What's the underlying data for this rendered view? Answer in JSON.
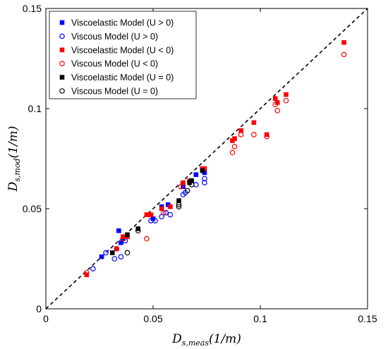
{
  "chart_data": {
    "type": "scatter",
    "xlabel": "D_{s,meas}(1/m)",
    "ylabel": "D_{s,mod}(1/m)",
    "xlabel_parts": {
      "main": "D",
      "sub": "s,meas",
      "unit": "(1/m)"
    },
    "ylabel_parts": {
      "main": "D",
      "sub": "s,mod",
      "unit": "(1/m)"
    },
    "xlim": [
      0,
      0.15
    ],
    "ylim": [
      0,
      0.15
    ],
    "x_ticks": [
      0,
      0.05,
      0.1,
      0.15
    ],
    "y_ticks": [
      0,
      0.05,
      0.1,
      0.15
    ],
    "x_tick_labels": [
      "0",
      "0.05",
      "0.1",
      "0.15"
    ],
    "y_tick_labels": [
      "0",
      "0.05",
      "0.1",
      "0.15"
    ],
    "grid": false,
    "legend_position": "top-left",
    "reference_line": {
      "style": "dashed",
      "color": "#000000",
      "from": [
        0,
        0
      ],
      "to": [
        0.15,
        0.15
      ]
    },
    "series": [
      {
        "name": "Viscoelastic Model (U > 0)",
        "marker": "square-filled",
        "color": "#0000ff",
        "points": [
          [
            0.026,
            0.026
          ],
          [
            0.034,
            0.039
          ],
          [
            0.035,
            0.033
          ],
          [
            0.036,
            0.035
          ],
          [
            0.05,
            0.045
          ],
          [
            0.054,
            0.051
          ],
          [
            0.057,
            0.052
          ],
          [
            0.058,
            0.051
          ],
          [
            0.064,
            0.061
          ],
          [
            0.07,
            0.067
          ],
          [
            0.074,
            0.068
          ],
          [
            0.073,
            0.07
          ]
        ]
      },
      {
        "name": "Viscous Model (U > 0)",
        "marker": "circle-open",
        "color": "#0000ff",
        "points": [
          [
            0.022,
            0.02
          ],
          [
            0.028,
            0.028
          ],
          [
            0.032,
            0.025
          ],
          [
            0.033,
            0.03
          ],
          [
            0.035,
            0.026
          ],
          [
            0.037,
            0.034
          ],
          [
            0.049,
            0.044
          ],
          [
            0.051,
            0.044
          ],
          [
            0.054,
            0.046
          ],
          [
            0.056,
            0.048
          ],
          [
            0.058,
            0.047
          ],
          [
            0.064,
            0.057
          ],
          [
            0.065,
            0.058
          ],
          [
            0.07,
            0.062
          ],
          [
            0.074,
            0.063
          ],
          [
            0.074,
            0.065
          ]
        ]
      },
      {
        "name": "Viscoelastic Model (U < 0)",
        "marker": "square-filled",
        "color": "#ff0000",
        "points": [
          [
            0.019,
            0.017
          ],
          [
            0.033,
            0.03
          ],
          [
            0.036,
            0.036
          ],
          [
            0.038,
            0.036
          ],
          [
            0.047,
            0.047
          ],
          [
            0.049,
            0.047
          ],
          [
            0.054,
            0.05
          ],
          [
            0.058,
            0.051
          ],
          [
            0.064,
            0.063
          ],
          [
            0.067,
            0.064
          ],
          [
            0.073,
            0.07
          ],
          [
            0.074,
            0.07
          ],
          [
            0.087,
            0.084
          ],
          [
            0.088,
            0.085
          ],
          [
            0.091,
            0.089
          ],
          [
            0.097,
            0.093
          ],
          [
            0.103,
            0.087
          ],
          [
            0.107,
            0.105
          ],
          [
            0.108,
            0.103
          ],
          [
            0.112,
            0.107
          ],
          [
            0.139,
            0.133
          ]
        ]
      },
      {
        "name": "Viscous Model (U < 0)",
        "marker": "circle-open",
        "color": "#ff0000",
        "points": [
          [
            0.019,
            0.018
          ],
          [
            0.036,
            0.035
          ],
          [
            0.047,
            0.035
          ],
          [
            0.048,
            0.047
          ],
          [
            0.055,
            0.048
          ],
          [
            0.063,
            0.061
          ],
          [
            0.087,
            0.078
          ],
          [
            0.088,
            0.081
          ],
          [
            0.091,
            0.087
          ],
          [
            0.097,
            0.087
          ],
          [
            0.103,
            0.086
          ],
          [
            0.107,
            0.102
          ],
          [
            0.108,
            0.099
          ],
          [
            0.112,
            0.104
          ],
          [
            0.139,
            0.127
          ]
        ]
      },
      {
        "name": "Viscoelastic Model (U = 0)",
        "marker": "square-filled",
        "color": "#000000",
        "points": [
          [
            0.031,
            0.028
          ],
          [
            0.038,
            0.037
          ],
          [
            0.043,
            0.04
          ],
          [
            0.062,
            0.054
          ],
          [
            0.067,
            0.063
          ],
          [
            0.068,
            0.064
          ],
          [
            0.073,
            0.069
          ]
        ]
      },
      {
        "name": "Viscous Model (U = 0)",
        "marker": "circle-open",
        "color": "#000000",
        "points": [
          [
            0.038,
            0.028
          ],
          [
            0.043,
            0.039
          ],
          [
            0.062,
            0.051
          ],
          [
            0.062,
            0.052
          ],
          [
            0.066,
            0.059
          ],
          [
            0.068,
            0.062
          ]
        ]
      }
    ]
  }
}
